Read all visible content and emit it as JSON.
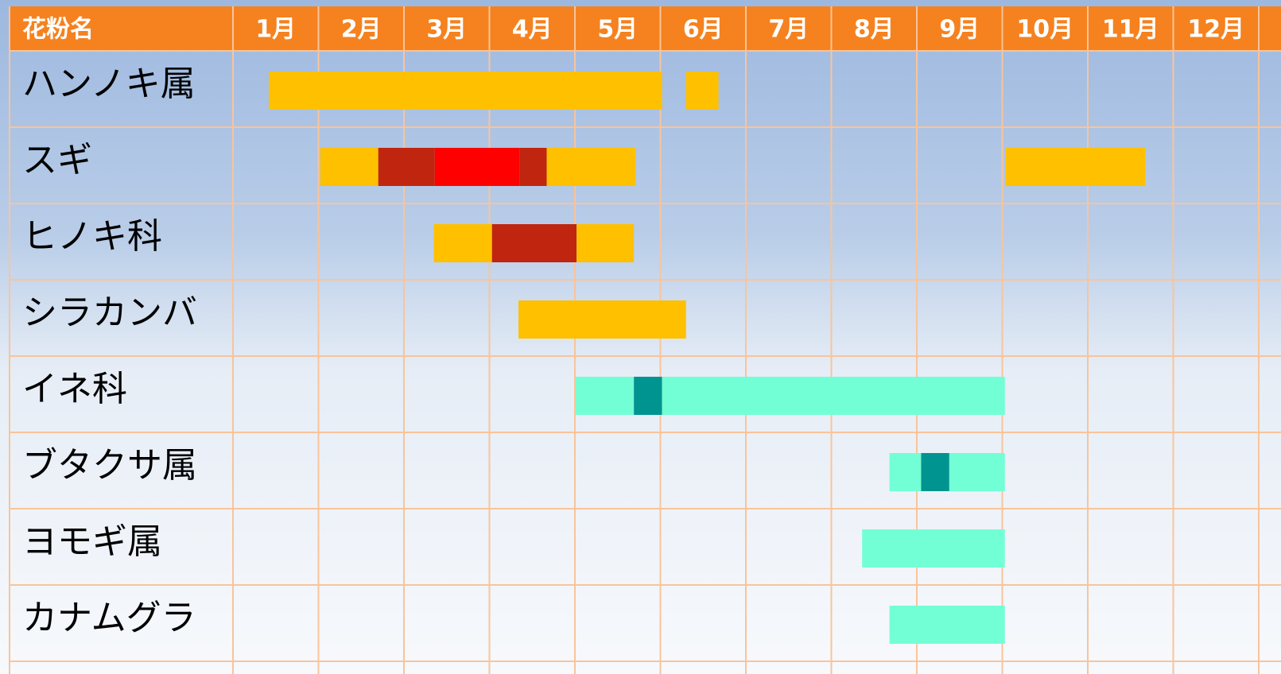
{
  "chart_data": {
    "type": "gantt",
    "row_header": "花粉名",
    "categories": [
      "1月",
      "2月",
      "3月",
      "4月",
      "5月",
      "6月",
      "7月",
      "8月",
      "9月",
      "10月",
      "11月",
      "12月"
    ],
    "xlim": [
      1,
      13
    ],
    "rows": [
      {
        "name": "ハンノキ属",
        "segments": [
          {
            "start": 1.42,
            "end": 6.02,
            "color": "#FFC000"
          },
          {
            "start": 6.3,
            "end": 6.68,
            "color": "#FFC000"
          }
        ]
      },
      {
        "name": "スギ",
        "segments": [
          {
            "start": 2.02,
            "end": 2.7,
            "color": "#FFC000"
          },
          {
            "start": 2.7,
            "end": 3.36,
            "color": "#C0260F"
          },
          {
            "start": 3.36,
            "end": 4.35,
            "color": "#FF0000"
          },
          {
            "start": 4.35,
            "end": 4.67,
            "color": "#C0260F"
          },
          {
            "start": 4.67,
            "end": 5.71,
            "color": "#FFC000"
          },
          {
            "start": 10.04,
            "end": 11.67,
            "color": "#FFC000"
          }
        ]
      },
      {
        "name": "ヒノキ科",
        "segments": [
          {
            "start": 3.35,
            "end": 4.03,
            "color": "#FFC000"
          },
          {
            "start": 4.03,
            "end": 5.02,
            "color": "#C0260F"
          },
          {
            "start": 5.02,
            "end": 5.69,
            "color": "#FFC000"
          }
        ]
      },
      {
        "name": "シラカンバ",
        "segments": [
          {
            "start": 4.34,
            "end": 6.3,
            "color": "#FFC000"
          }
        ]
      },
      {
        "name": "イネ科",
        "segments": [
          {
            "start": 5.01,
            "end": 5.69,
            "color": "#73FFD6"
          },
          {
            "start": 5.69,
            "end": 6.02,
            "color": "#009490"
          },
          {
            "start": 6.02,
            "end": 10.03,
            "color": "#73FFD6"
          }
        ]
      },
      {
        "name": "ブタクサ属",
        "segments": [
          {
            "start": 8.68,
            "end": 9.05,
            "color": "#73FFD6"
          },
          {
            "start": 9.05,
            "end": 9.38,
            "color": "#009490"
          },
          {
            "start": 9.38,
            "end": 10.03,
            "color": "#73FFD6"
          }
        ]
      },
      {
        "name": "ヨモギ属",
        "segments": [
          {
            "start": 8.36,
            "end": 10.03,
            "color": "#73FFD6"
          }
        ]
      },
      {
        "name": "カナムグラ",
        "segments": [
          {
            "start": 8.68,
            "end": 10.03,
            "color": "#73FFD6"
          }
        ]
      }
    ]
  }
}
